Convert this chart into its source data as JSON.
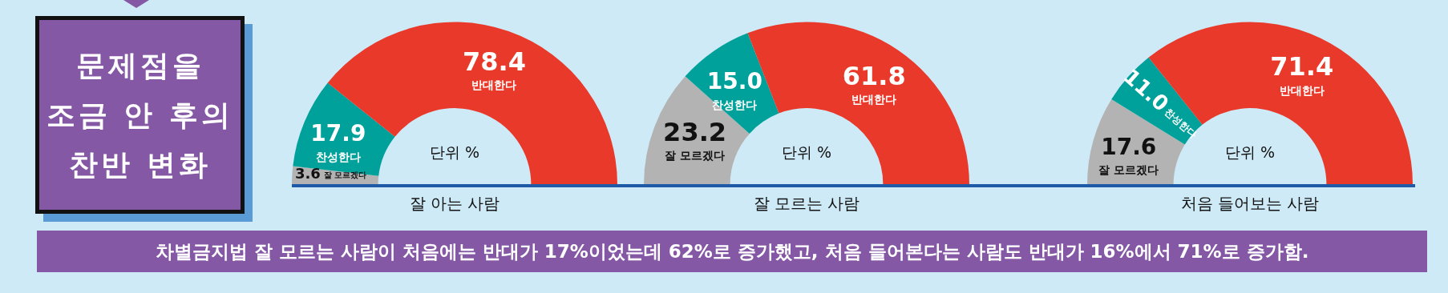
{
  "chart_data": [
    {
      "type": "other",
      "title": "문제점을 조금 안 후의 찬반 변화",
      "annotations": [
        "차별금지법 잘 모르는 사람이 처음에는 반대가 17%이었는데 62%로 증가했고, 처음 들어본다는 사람도 반대가 16%에서 71%로 증가함."
      ]
    },
    {
      "type": "donut",
      "xlabel": "잘 아는 사람",
      "categories": [
        "잘 모르겠다",
        "찬성한다",
        "반대한다"
      ],
      "values": [
        3.6,
        17.9,
        78.4
      ],
      "value_labels": [
        "3.6",
        "17.9",
        "78.4"
      ],
      "colors": [
        "#b3b3b3",
        "#00a19a",
        "#e8392a"
      ],
      "annotations": [
        "단위 %"
      ]
    },
    {
      "type": "donut",
      "xlabel": "잘 모르는 사람",
      "categories": [
        "잘 모르겠다",
        "찬성한다",
        "반대한다"
      ],
      "values": [
        23.2,
        15.0,
        61.8
      ],
      "value_labels": [
        "23.2",
        "15.0",
        "61.8"
      ],
      "colors": [
        "#b3b3b3",
        "#00a19a",
        "#e8392a"
      ],
      "annotations": [
        "단위 %"
      ]
    },
    {
      "type": "donut",
      "xlabel": "처음 들어보는 사람",
      "categories": [
        "잘 모르겠다",
        "찬성한다",
        "반대한다"
      ],
      "values": [
        17.6,
        11.0,
        71.4
      ],
      "value_labels": [
        "17.6",
        "11.0",
        "71.4"
      ],
      "colors": [
        "#b3b3b3",
        "#00a19a",
        "#e8392a"
      ],
      "annotations": [
        "단위 %"
      ]
    }
  ]
}
